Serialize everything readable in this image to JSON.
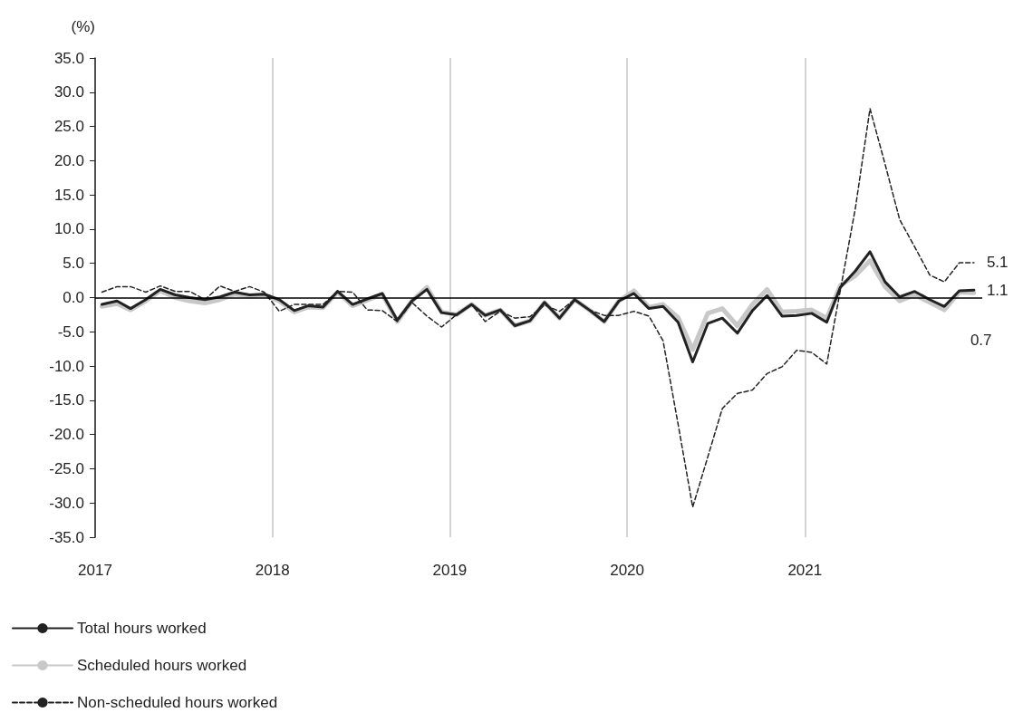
{
  "chart_data": {
    "type": "line",
    "ylabel": "(%)",
    "x": [
      "2017-01-15",
      "2017-02-15",
      "2017-03-15",
      "2017-04-15",
      "2017-05-15",
      "2017-06-15",
      "2017-07-15",
      "2017-08-15",
      "2017-09-15",
      "2017-10-15",
      "2017-11-15",
      "2017-12-15",
      "2018-01-15",
      "2018-02-15",
      "2018-03-15",
      "2018-04-15",
      "2018-05-15",
      "2018-06-15",
      "2018-07-15",
      "2018-08-15",
      "2018-09-15",
      "2018-10-15",
      "2018-11-15",
      "2018-12-15",
      "2019-01-15",
      "2019-02-15",
      "2019-03-15",
      "2019-04-15",
      "2019-05-15",
      "2019-06-15",
      "2019-07-15",
      "2019-08-15",
      "2019-09-15",
      "2019-10-15",
      "2019-11-15",
      "2019-12-15",
      "2020-01-15",
      "2020-02-15",
      "2020-03-15",
      "2020-04-15",
      "2020-05-15",
      "2020-06-15",
      "2020-07-15",
      "2020-08-15",
      "2020-09-15",
      "2020-10-15",
      "2020-11-15",
      "2020-12-15",
      "2021-01-15",
      "2021-02-15",
      "2021-03-15",
      "2021-04-15",
      "2021-05-15",
      "2021-06-15",
      "2021-07-15",
      "2021-08-15",
      "2021-09-15",
      "2021-10-15",
      "2021-11-15",
      "2021-12-15"
    ],
    "series": [
      {
        "name": "Total hours worked",
        "color": "#222222",
        "line_style": "solid",
        "values": [
          -1.0,
          -0.5,
          -1.6,
          -0.3,
          1.2,
          0.4,
          0.0,
          -0.3,
          0.1,
          0.8,
          0.4,
          0.5,
          -0.3,
          -1.9,
          -1.2,
          -1.4,
          0.9,
          -1.0,
          -0.2,
          0.6,
          -3.3,
          -0.5,
          1.2,
          -2.2,
          -2.5,
          -1.0,
          -2.6,
          -1.8,
          -4.1,
          -3.4,
          -0.7,
          -3.0,
          -0.3,
          -1.8,
          -3.5,
          -0.5,
          0.6,
          -1.6,
          -1.3,
          -3.6,
          -9.4,
          -3.8,
          -3.0,
          -5.2,
          -1.9,
          0.3,
          -2.7,
          -2.6,
          -2.3,
          -3.6,
          1.5,
          3.9,
          6.7,
          2.3,
          0.1,
          0.9,
          -0.3,
          -1.3,
          1.0,
          1.1
        ],
        "value_labels": [
          null,
          null,
          null,
          null,
          null,
          null,
          null,
          null,
          null,
          null,
          null,
          null,
          null,
          null,
          null,
          null,
          null,
          null,
          null,
          null,
          null,
          null,
          null,
          null,
          null,
          null,
          null,
          null,
          null,
          null,
          null,
          null,
          null,
          null,
          null,
          null,
          null,
          null,
          null,
          null,
          null,
          null,
          null,
          null,
          null,
          null,
          null,
          null,
          null,
          null,
          null,
          null,
          null,
          null,
          null,
          null,
          null,
          null,
          null,
          "1.1"
        ]
      },
      {
        "name": "Scheduled hours worked",
        "color": "#c8c8c8",
        "line_style": "solid",
        "values": [
          -1.3,
          -0.9,
          -1.8,
          -0.5,
          1.0,
          0.0,
          -0.5,
          -0.8,
          -0.3,
          0.5,
          0.2,
          0.4,
          -0.5,
          -2.1,
          -1.4,
          -1.5,
          0.8,
          -1.2,
          -0.4,
          0.5,
          -3.5,
          -0.5,
          1.5,
          -2.1,
          -2.5,
          -1.0,
          -2.6,
          -1.8,
          -4.1,
          -3.4,
          -0.7,
          -3.0,
          -0.3,
          -1.8,
          -3.5,
          -0.5,
          1.0,
          -1.4,
          -1.0,
          -2.9,
          -7.6,
          -2.3,
          -1.6,
          -4.1,
          -1.0,
          1.2,
          -2.1,
          -2.0,
          -1.8,
          -3.0,
          1.8,
          3.2,
          5.4,
          1.6,
          -0.5,
          0.4,
          -0.7,
          -1.8,
          0.8,
          0.7
        ],
        "value_labels": [
          null,
          null,
          null,
          null,
          null,
          null,
          null,
          null,
          null,
          null,
          null,
          null,
          null,
          null,
          null,
          null,
          null,
          null,
          null,
          null,
          null,
          null,
          null,
          null,
          null,
          null,
          null,
          null,
          null,
          null,
          null,
          null,
          null,
          null,
          null,
          null,
          null,
          null,
          null,
          null,
          null,
          null,
          null,
          null,
          null,
          null,
          null,
          null,
          null,
          null,
          null,
          null,
          null,
          null,
          null,
          null,
          null,
          null,
          null,
          "0.7"
        ]
      },
      {
        "name": "Non-scheduled hours worked",
        "color": "#222222",
        "line_style": "dashed",
        "values": [
          0.8,
          1.6,
          1.6,
          0.8,
          1.7,
          0.9,
          0.9,
          -0.3,
          1.7,
          0.9,
          1.6,
          0.8,
          -2.0,
          -1.0,
          -1.0,
          -1.0,
          0.9,
          0.8,
          -1.8,
          -1.9,
          -3.5,
          -0.7,
          -2.7,
          -4.3,
          -2.5,
          -1.0,
          -3.5,
          -2.0,
          -3.0,
          -2.8,
          -1.1,
          -2.0,
          -0.3,
          -1.8,
          -2.6,
          -2.6,
          -2.0,
          -2.7,
          -6.3,
          -18.5,
          -30.6,
          -23.3,
          -16.2,
          -14.0,
          -13.5,
          -11.1,
          -10.1,
          -7.7,
          -8.0,
          -9.7,
          1.1,
          13.1,
          27.6,
          19.5,
          11.4,
          7.4,
          3.3,
          2.3,
          5.1,
          5.1
        ],
        "value_labels": [
          null,
          null,
          null,
          null,
          null,
          null,
          null,
          null,
          null,
          null,
          null,
          null,
          null,
          null,
          null,
          null,
          null,
          null,
          null,
          null,
          null,
          null,
          null,
          null,
          null,
          null,
          null,
          null,
          null,
          null,
          null,
          null,
          null,
          null,
          null,
          null,
          null,
          null,
          null,
          null,
          null,
          null,
          null,
          null,
          null,
          null,
          null,
          null,
          null,
          null,
          null,
          null,
          null,
          null,
          null,
          null,
          null,
          null,
          null,
          "5.1"
        ]
      }
    ],
    "xlim": [
      "2017",
      "2022"
    ],
    "xticks": [
      "2017",
      "2018",
      "2019",
      "2020",
      "2021"
    ],
    "ylim": [
      -35,
      35
    ],
    "yticks": [
      {
        "value": -35,
        "label": "-35.0"
      },
      {
        "value": -30,
        "label": "-30.0"
      },
      {
        "value": -25,
        "label": "-25.0"
      },
      {
        "value": -20,
        "label": "-20.0"
      },
      {
        "value": -15,
        "label": "-15.0"
      },
      {
        "value": -10,
        "label": "-10.0"
      },
      {
        "value": -5,
        "label": "-5.0"
      },
      {
        "value": 0,
        "label": "0.0"
      },
      {
        "value": 5,
        "label": "5.0"
      },
      {
        "value": 10,
        "label": "10.0"
      },
      {
        "value": 15,
        "label": "15.0"
      },
      {
        "value": 20,
        "label": "20.0"
      },
      {
        "value": 25,
        "label": "25.0"
      },
      {
        "value": 30,
        "label": "30.0"
      },
      {
        "value": 35,
        "label": "35.0"
      }
    ],
    "ref_lines": [
      {
        "axis": "y",
        "value": 0,
        "color": "#000000"
      }
    ],
    "grid": "x",
    "legend": "bottom left",
    "marker": "none"
  }
}
